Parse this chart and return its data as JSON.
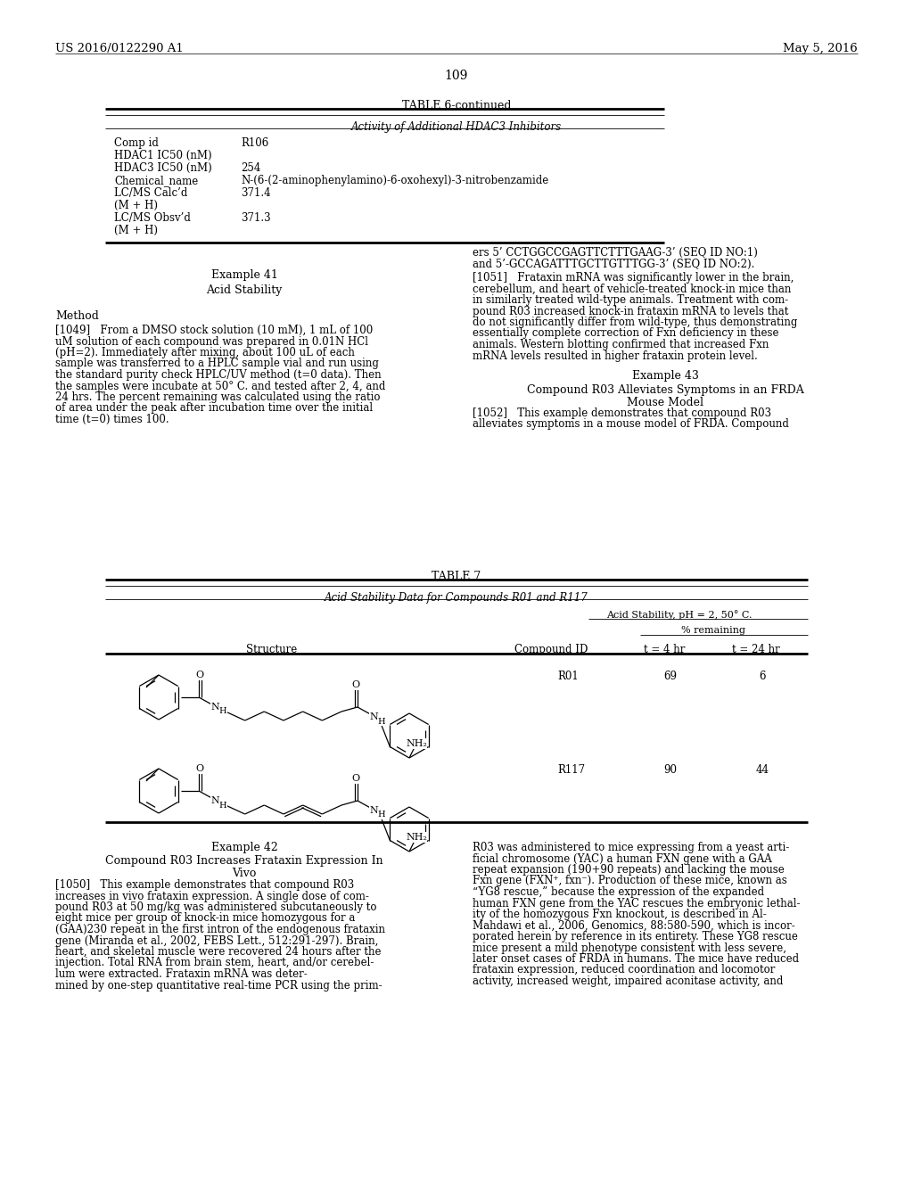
{
  "bg_color": "#ffffff",
  "header_left": "US 2016/0122290 A1",
  "header_right": "May 5, 2016",
  "page_number": "109",
  "table6_title": "TABLE 6-continued",
  "table6_subtitle": "Activity of Additional HDAC3 Inhibitors",
  "table6_rows": [
    [
      "Comp id",
      "R106"
    ],
    [
      "HDAC1 IC50 (nM)",
      ""
    ],
    [
      "HDAC3 IC50 (nM)",
      "254"
    ],
    [
      "Chemical_name",
      "N-(6-(2-aminophenylamino)-6-oxohexyl)-3-nitrobenzamide"
    ],
    [
      "LC/MS Calc’d",
      "371.4"
    ],
    [
      "(M + H)",
      ""
    ],
    [
      "LC/MS Obsv’d",
      "371.3"
    ],
    [
      "(M + H)",
      ""
    ]
  ],
  "table7_title": "TABLE 7",
  "table7_subtitle": "Acid Stability Data for Compounds R01 and R117",
  "table7_acid_header": "Acid Stability, pH = 2, 50° C.",
  "table7_pct_header": "% remaining",
  "table7_structure_label": "Structure",
  "table7_compid_label": "Compound ID",
  "table7_t4_label": "t = 4 hr",
  "table7_t24_label": "t = 24 hr",
  "table7_rows": [
    {
      "id": "R01",
      "t4": "69",
      "t24": "6"
    },
    {
      "id": "R117",
      "t4": "90",
      "t24": "44"
    }
  ]
}
